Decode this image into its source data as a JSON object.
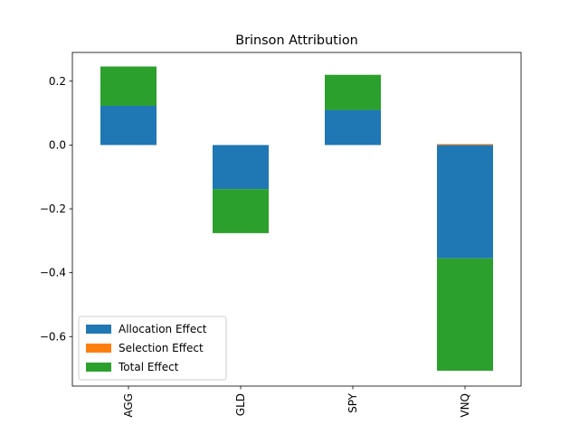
{
  "chart_data": {
    "type": "bar",
    "stacked": true,
    "title": "Brinson Attribution",
    "xlabel": "",
    "ylabel": "",
    "categories": [
      "AGG",
      "GLD",
      "SPY",
      "VNQ"
    ],
    "series": [
      {
        "name": "Allocation Effect",
        "color": "#1f77b4",
        "values": [
          0.123,
          -0.138,
          0.11,
          -0.355
        ]
      },
      {
        "name": "Selection Effect",
        "color": "#ff7f0e",
        "values": [
          0.0,
          0.0,
          0.0,
          0.003
        ]
      },
      {
        "name": "Total Effect",
        "color": "#2ca02c",
        "values": [
          0.123,
          -0.138,
          0.11,
          -0.352
        ]
      }
    ],
    "ylim": [
      -0.755,
      0.29
    ],
    "yticks": [
      0.2,
      0.0,
      -0.2,
      -0.4,
      -0.6
    ],
    "ytick_labels": [
      "0.2",
      "0.0",
      "−0.2",
      "−0.4",
      "−0.6"
    ],
    "grid": false,
    "legend_position": "lower-left"
  }
}
